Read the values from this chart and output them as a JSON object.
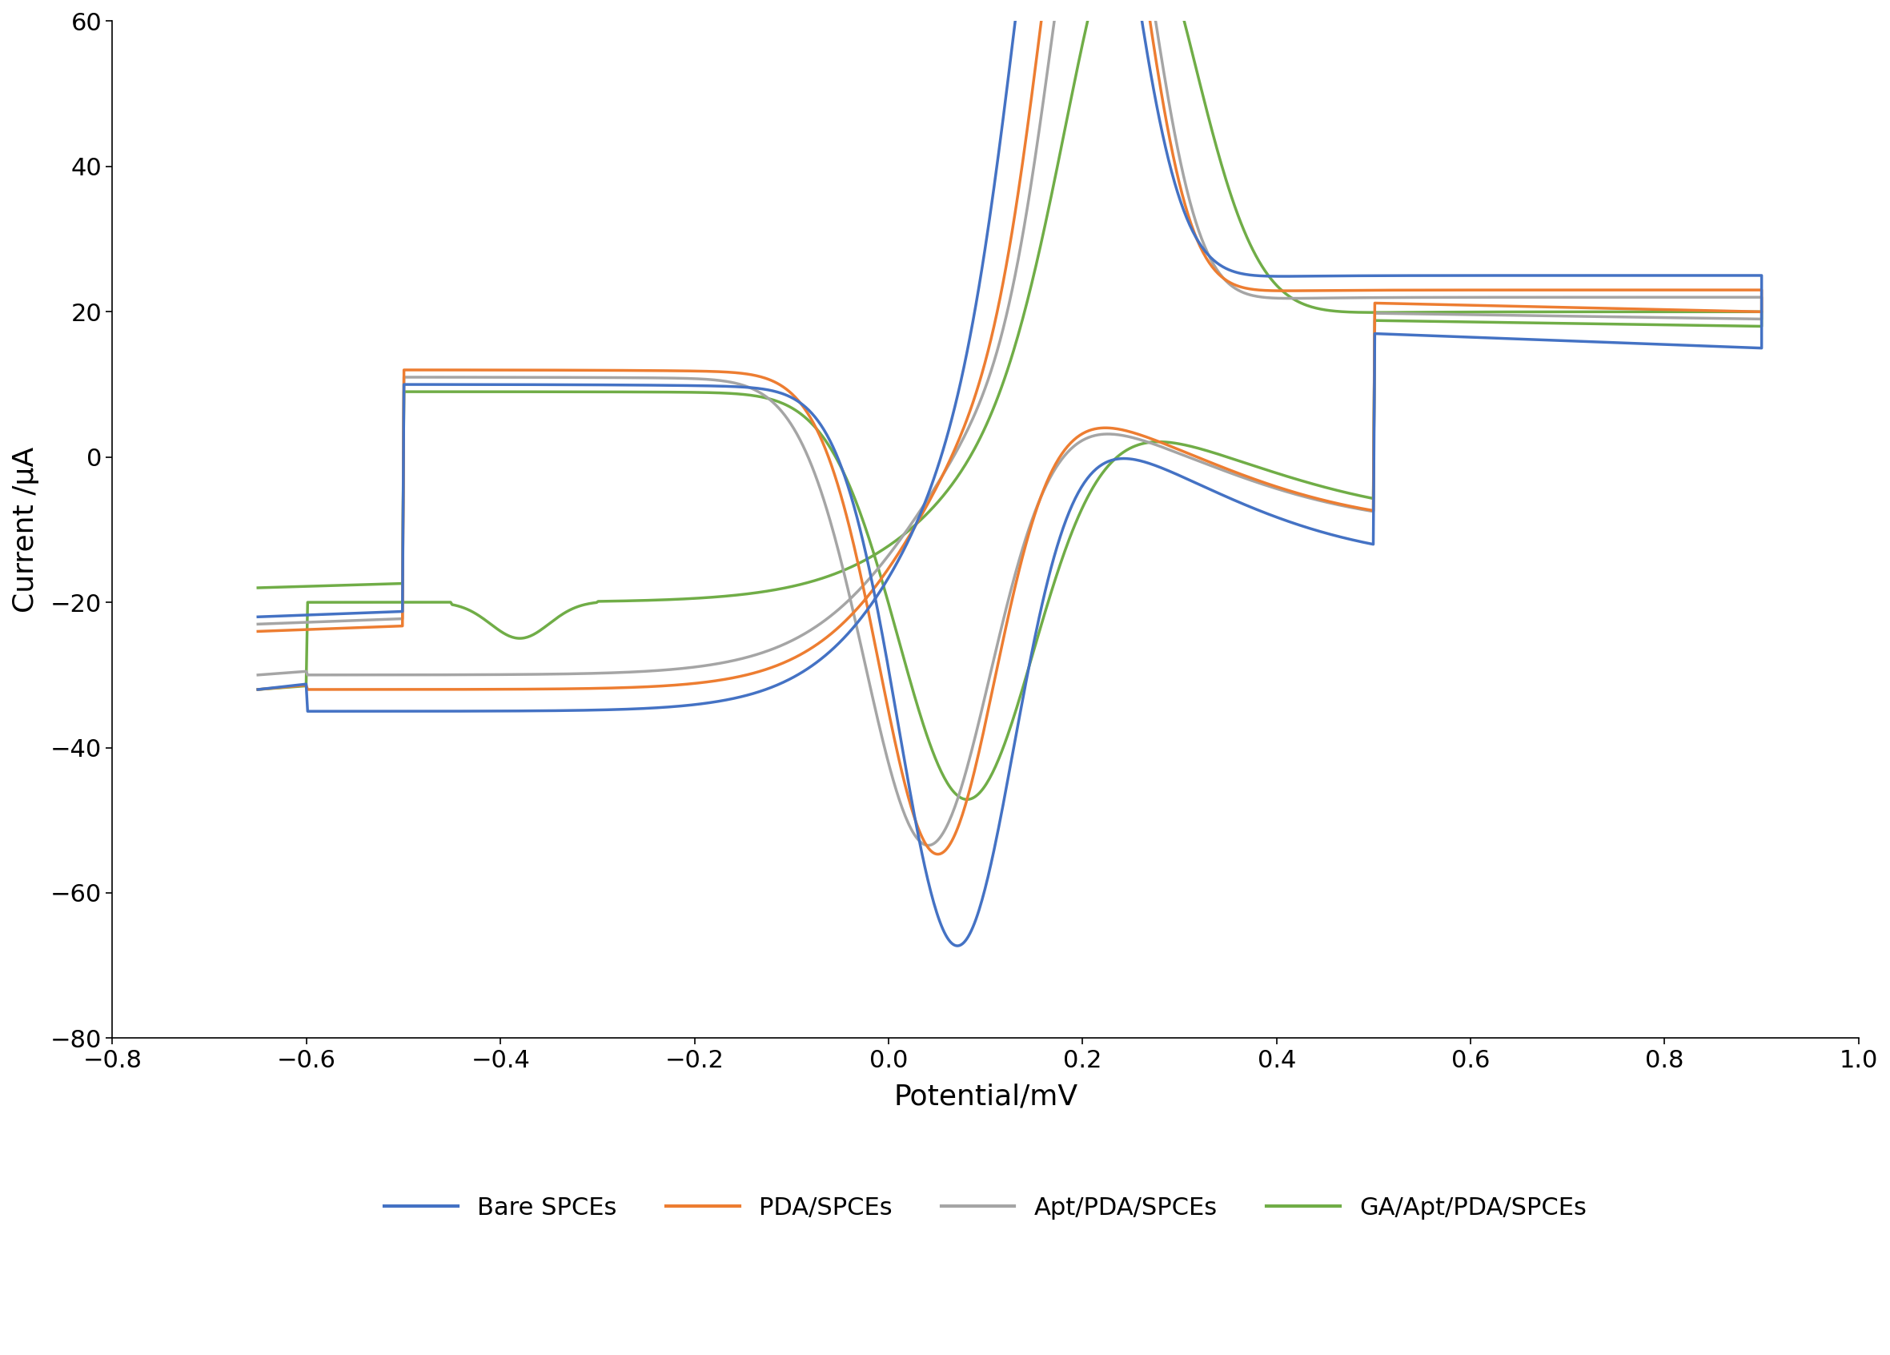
{
  "title": "",
  "xlabel": "Potential/mV",
  "ylabel": "Current /µA",
  "xlim": [
    -0.8,
    1.0
  ],
  "ylim": [
    -80,
    60
  ],
  "xticks": [
    -0.8,
    -0.6,
    -0.4,
    -0.2,
    0,
    0.2,
    0.4,
    0.6,
    0.8,
    1.0
  ],
  "yticks": [
    -80,
    -60,
    -40,
    -20,
    0,
    20,
    40,
    60
  ],
  "colors": {
    "blue": "#4472C4",
    "orange": "#ED7D31",
    "gray": "#A5A5A5",
    "green": "#70AD47"
  },
  "legend_labels": [
    "Bare SPCEs",
    "PDA/SPCEs",
    "Apt/PDA/SPCEs",
    "GA/Apt/PDA/SPCEs"
  ],
  "background_color": "#FFFFFF",
  "linewidth": 2.5
}
